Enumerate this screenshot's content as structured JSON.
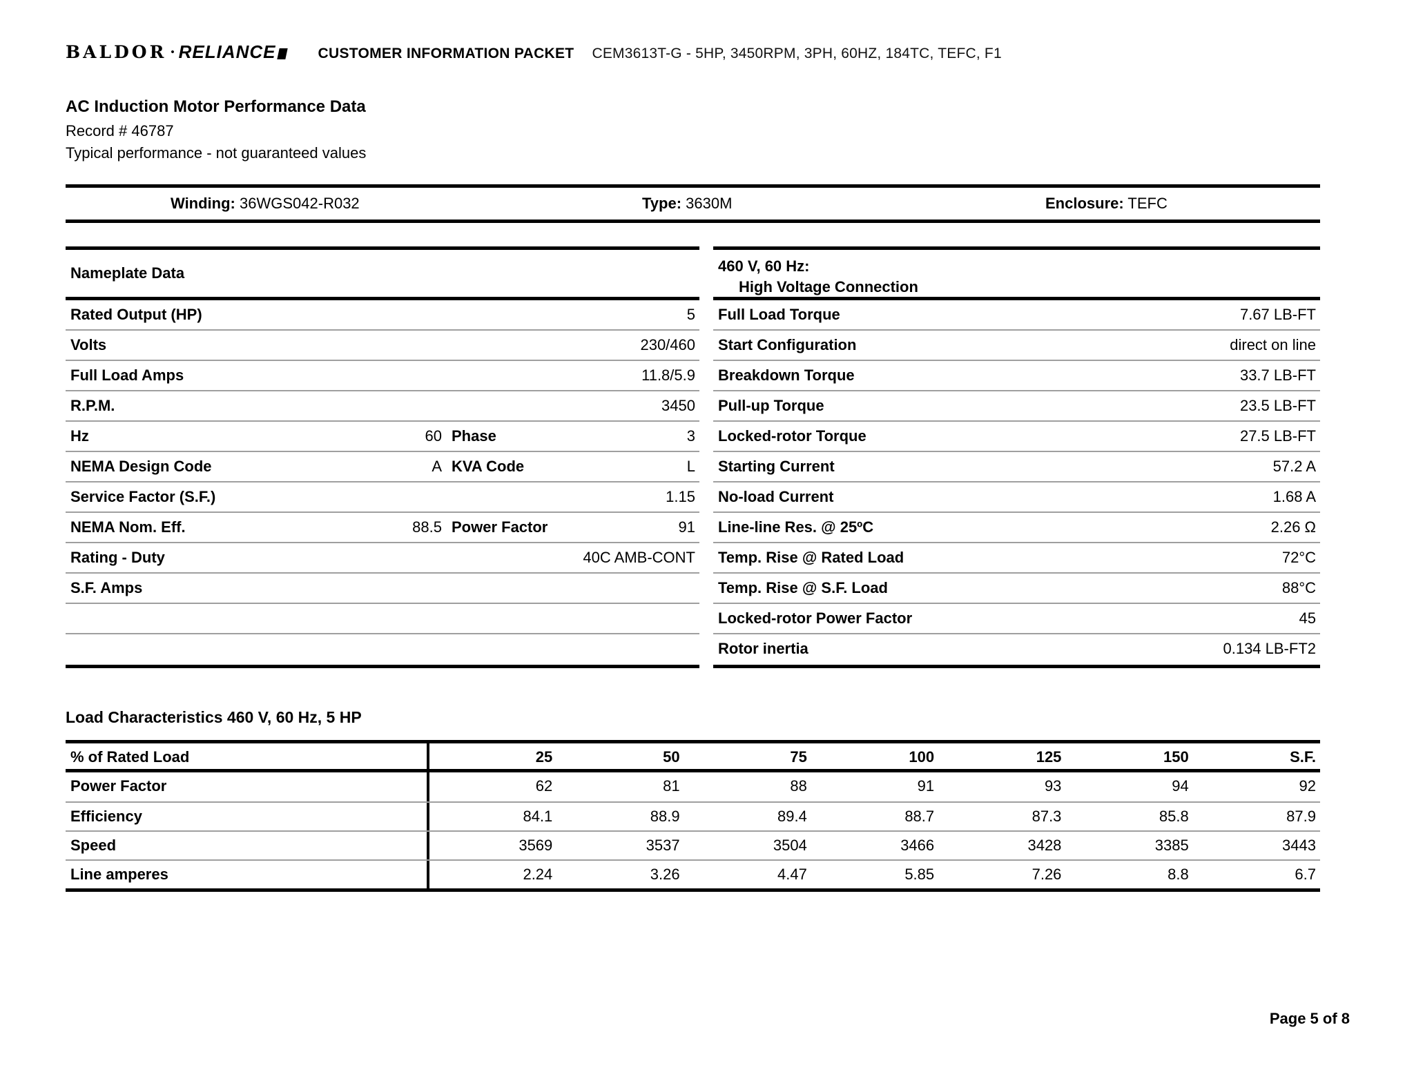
{
  "header": {
    "logo_baldor": "BALDOR",
    "logo_dot": "•",
    "logo_reliance": "RELIANCE",
    "packet_title": "CUSTOMER INFORMATION PACKET",
    "model_line": "CEM3613T-G - 5HP, 3450RPM, 3PH, 60HZ, 184TC, TEFC, F1"
  },
  "title_block": {
    "title": "AC Induction Motor Performance Data",
    "record": "Record # 46787",
    "note": "Typical performance - not guaranteed values"
  },
  "winding_bar": {
    "winding_label": "Winding:",
    "winding_value": "36WGS042-R032",
    "type_label": "Type:",
    "type_value": "3630M",
    "enclosure_label": "Enclosure:",
    "enclosure_value": "TEFC"
  },
  "nameplate": {
    "header": "Nameplate Data",
    "rows": [
      {
        "label": "Rated Output (HP)",
        "mid_value": "",
        "mid_label": "",
        "value": "5"
      },
      {
        "label": "Volts",
        "mid_value": "",
        "mid_label": "",
        "value": "230/460"
      },
      {
        "label": "Full Load Amps",
        "mid_value": "",
        "mid_label": "",
        "value": "11.8/5.9"
      },
      {
        "label": "R.P.M.",
        "mid_value": "",
        "mid_label": "",
        "value": "3450"
      },
      {
        "label": "Hz",
        "mid_value": "60",
        "mid_label": "Phase",
        "value": "3"
      },
      {
        "label": "NEMA Design Code",
        "mid_value": "A",
        "mid_label": "KVA Code",
        "value": "L"
      },
      {
        "label": "Service Factor (S.F.)",
        "mid_value": "",
        "mid_label": "",
        "value": "1.15"
      },
      {
        "label": "NEMA Nom. Eff.",
        "mid_value": "88.5",
        "mid_label": "Power Factor",
        "value": "91"
      },
      {
        "label": "Rating - Duty",
        "mid_value": "",
        "mid_label": "",
        "value": "40C AMB-CONT"
      },
      {
        "label": "S.F. Amps",
        "mid_value": "",
        "mid_label": "",
        "value": ""
      },
      {
        "label": "",
        "mid_value": "",
        "mid_label": "",
        "value": ""
      },
      {
        "label": "",
        "mid_value": "",
        "mid_label": "",
        "value": ""
      }
    ]
  },
  "connection": {
    "header_line1": "460 V, 60 Hz:",
    "header_line2": "High Voltage Connection",
    "rows": [
      {
        "label": "Full Load Torque",
        "value": "7.67 LB-FT"
      },
      {
        "label": "Start Configuration",
        "value": "direct on line"
      },
      {
        "label": "Breakdown Torque",
        "value": "33.7 LB-FT"
      },
      {
        "label": "Pull-up Torque",
        "value": "23.5 LB-FT"
      },
      {
        "label": "Locked-rotor Torque",
        "value": "27.5 LB-FT"
      },
      {
        "label": "Starting Current",
        "value": "57.2 A"
      },
      {
        "label": "No-load Current",
        "value": "1.68 A"
      },
      {
        "label": "Line-line Res. @ 25ºC",
        "value": "2.26 Ω"
      },
      {
        "label": "Temp. Rise @ Rated Load",
        "value": "72°C"
      },
      {
        "label": "Temp. Rise @ S.F. Load",
        "value": "88°C"
      },
      {
        "label": "Locked-rotor Power Factor",
        "value": "45"
      },
      {
        "label": "Rotor inertia",
        "value": "0.134 LB-FT2"
      }
    ]
  },
  "load_characteristics": {
    "title": "Load Characteristics 460 V, 60 Hz, 5 HP",
    "columns": [
      "% of Rated Load",
      "25",
      "50",
      "75",
      "100",
      "125",
      "150",
      "S.F."
    ],
    "rows": [
      {
        "label": "Power Factor",
        "values": [
          "62",
          "81",
          "88",
          "91",
          "93",
          "94",
          "92"
        ]
      },
      {
        "label": "Efficiency",
        "values": [
          "84.1",
          "88.9",
          "89.4",
          "88.7",
          "87.3",
          "85.8",
          "87.9"
        ]
      },
      {
        "label": "Speed",
        "values": [
          "3569",
          "3537",
          "3504",
          "3466",
          "3428",
          "3385",
          "3443"
        ]
      },
      {
        "label": "Line amperes",
        "values": [
          "2.24",
          "3.26",
          "4.47",
          "5.85",
          "7.26",
          "8.8",
          "6.7"
        ]
      }
    ]
  },
  "footer": {
    "page": "Page 5 of 8"
  }
}
